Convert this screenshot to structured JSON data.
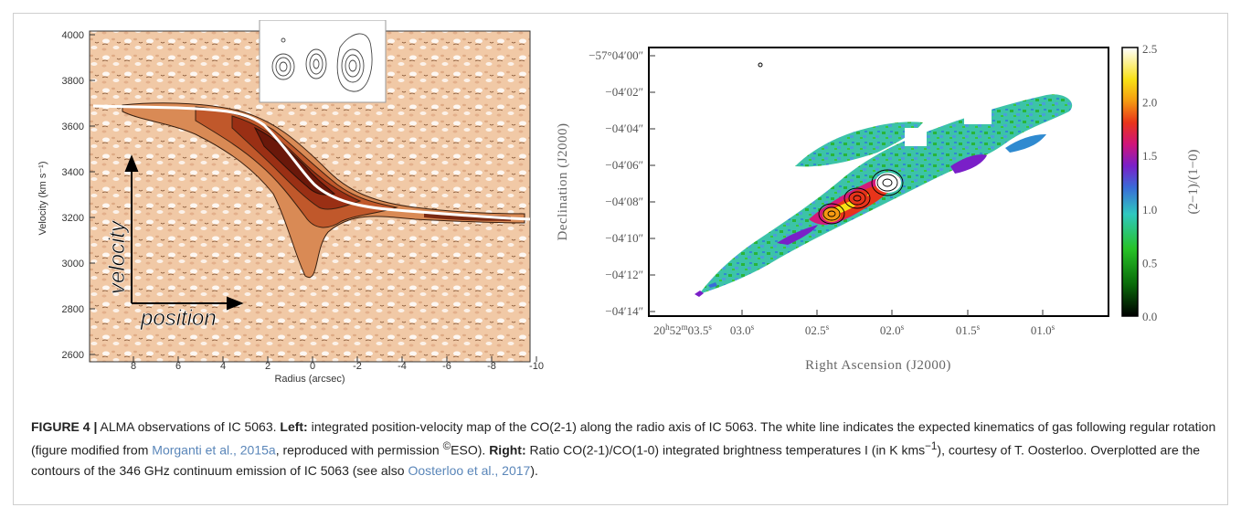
{
  "left_panel": {
    "y_axis_label": "Velocity (km s⁻¹)",
    "x_axis_label": "Radius (arcsec)",
    "y_ticks": [
      "4000",
      "3800",
      "3600",
      "3400",
      "3200",
      "3000",
      "2800",
      "2600"
    ],
    "x_ticks": [
      "8",
      "6",
      "4",
      "2",
      "0",
      "-2",
      "-4",
      "-6",
      "-8",
      "-10"
    ],
    "annotation_velocity": "velocity",
    "annotation_position": "position"
  },
  "right_panel": {
    "y_axis_label": "Declination  (J2000)",
    "x_axis_label": "Right Ascension  (J2000)",
    "dec_ticks": [
      "−57°04′00″",
      "−04′02″",
      "−04′04″",
      "−04′06″",
      "−04′08″",
      "−04′10″",
      "−04′12″",
      "−04′14″"
    ],
    "ra_first": "20",
    "ra_first_h": "h",
    "ra_first_rest": "52",
    "ra_first_m": "m",
    "ra_first_s": "03.5",
    "ra_ticks": [
      "03.0",
      "02.5",
      "02.0",
      "01.5",
      "01.0"
    ],
    "colorbar_label": "(2−1)/(1−0)",
    "colorbar_ticks": [
      "2.5",
      "2.0",
      "1.5",
      "1.0",
      "0.5",
      "0.0"
    ]
  },
  "caption": {
    "figure_label": "FIGURE 4 |",
    "intro": " ALMA observations of IC 5063. ",
    "left_label": "Left:",
    "left_text_1": " integrated position-velocity map of the CO(2-1) along the radio axis of IC 5063. The white line indicates the expected kinematics of gas following regular rotation (figure modified from ",
    "ref1": "Morganti et al., 2015a",
    "left_text_2": ", reproduced with permission ",
    "copyright": "©",
    "eso": "ESO). ",
    "right_label": "Right:",
    "right_text_1": " Ratio CO(2-1)/CO(1-0) integrated brightness temperatures I (in K kms",
    "superscript": "−1",
    "right_text_2": "), courtesy of T. Oosterloo. Overplotted are the contours of the 346 GHz continuum emission of IC 5063 (see also ",
    "ref2": "Oosterloo et al., 2017",
    "ending": ")."
  }
}
